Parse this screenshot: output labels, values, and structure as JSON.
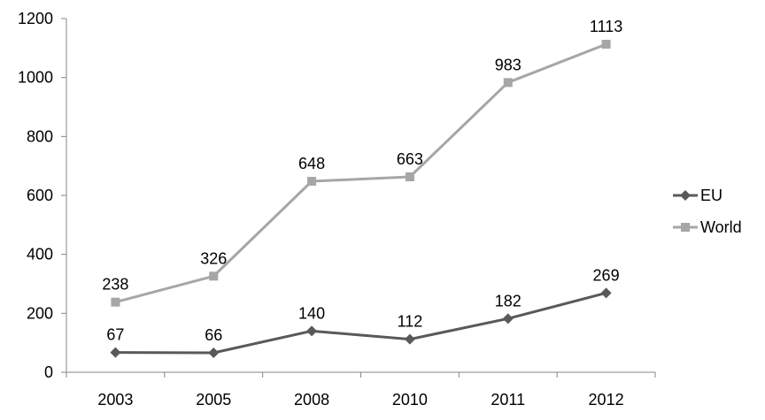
{
  "chart_data": {
    "type": "line",
    "title": "",
    "xlabel": "",
    "ylabel": "",
    "categories": [
      "2003",
      "2005",
      "2008",
      "2010",
      "2011",
      "2012"
    ],
    "ylim": [
      0,
      1200
    ],
    "yticks": [
      "0",
      "200",
      "400",
      "600",
      "800",
      "1000",
      "1200"
    ],
    "grid": false,
    "legend_position": "right",
    "series": [
      {
        "name": "EU",
        "values": [
          67,
          66,
          140,
          112,
          182,
          269
        ],
        "labels": [
          "67",
          "66",
          "140",
          "112",
          "182",
          "269"
        ],
        "color": "#595959",
        "marker": "diamond"
      },
      {
        "name": "World",
        "values": [
          238,
          326,
          648,
          663,
          983,
          1113
        ],
        "labels": [
          "238",
          "326",
          "648",
          "663",
          "983",
          "1113"
        ],
        "color": "#A6A6A6",
        "marker": "square"
      }
    ]
  }
}
